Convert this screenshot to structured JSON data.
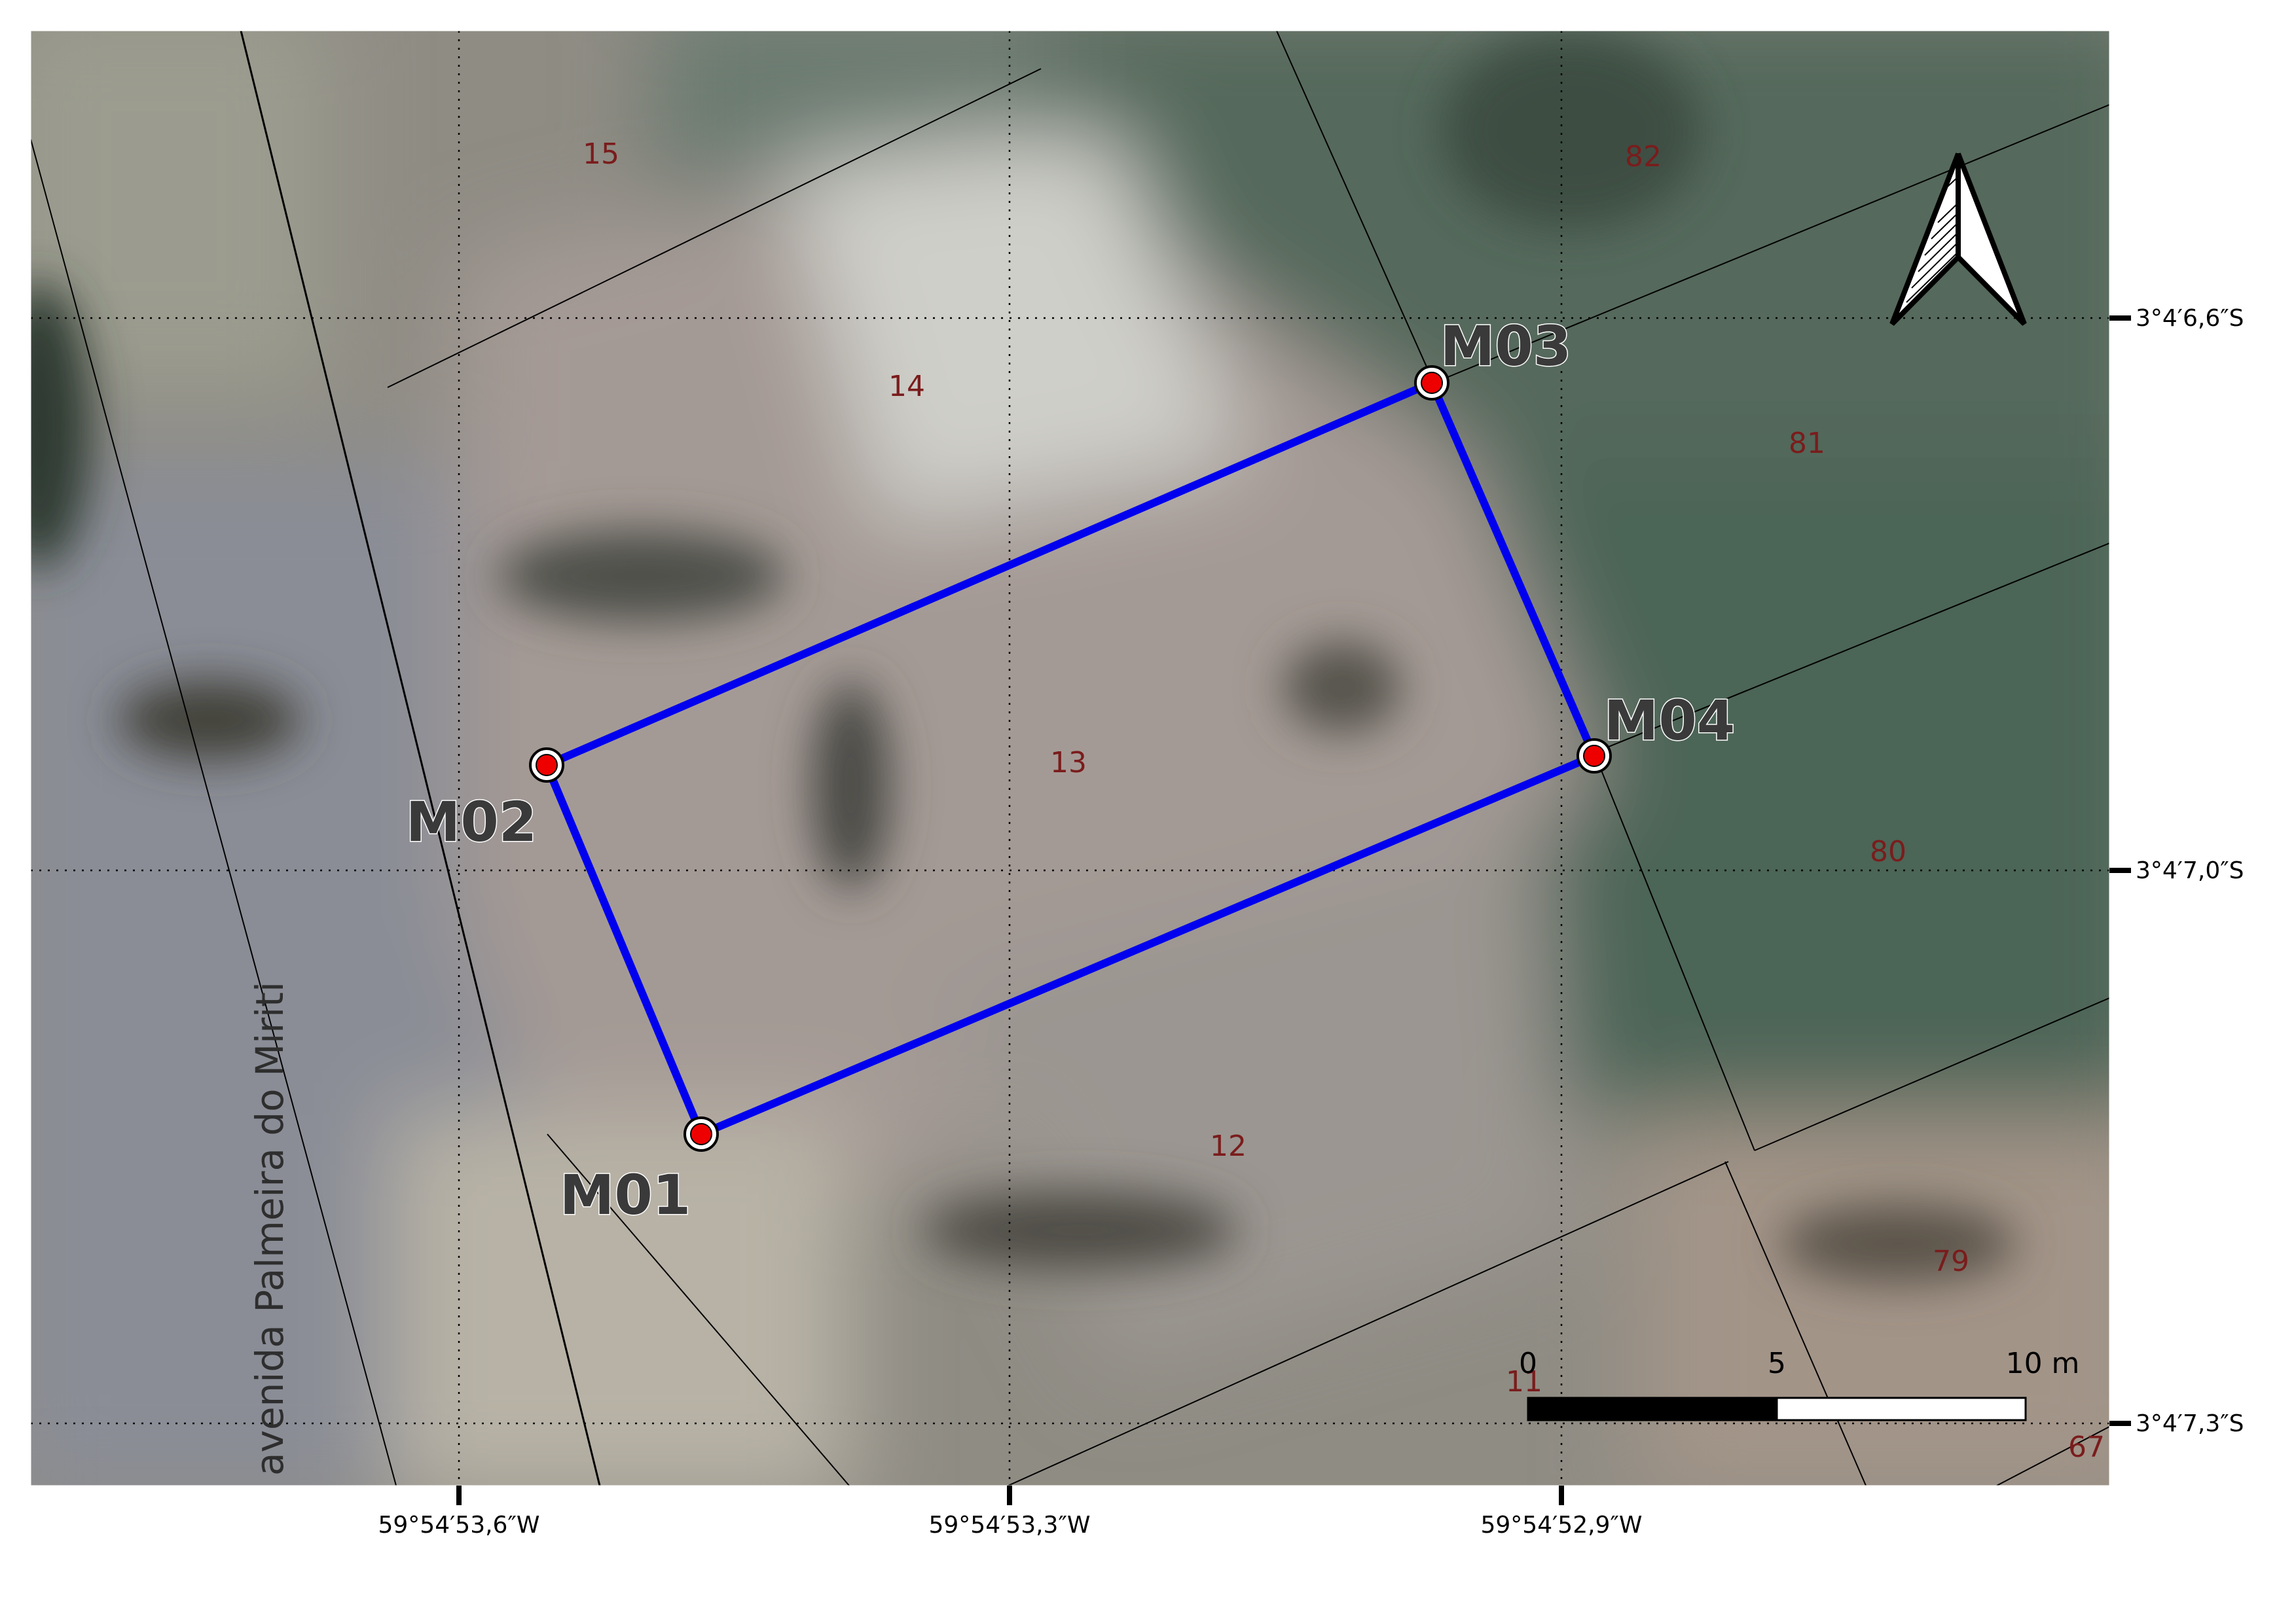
{
  "map": {
    "street": "avenida Palmeira do Miriti",
    "lots": [
      "15",
      "14",
      "13",
      "12",
      "11",
      "82",
      "81",
      "80",
      "79",
      "67"
    ],
    "markers": [
      "M01",
      "M02",
      "M03",
      "M04"
    ],
    "lat_labels": [
      "3°4′6,6″S",
      "3°4′7,0″S",
      "3°4′7,3″S"
    ],
    "lon_labels": [
      "59°54′53,6″W",
      "59°54′53,3″W",
      "59°54′52,9″W"
    ],
    "scale": {
      "zero": "0",
      "mid": "5",
      "end": "10 m"
    },
    "colors": {
      "boundary": "#0000ee",
      "marker": "#ee0000"
    }
  }
}
